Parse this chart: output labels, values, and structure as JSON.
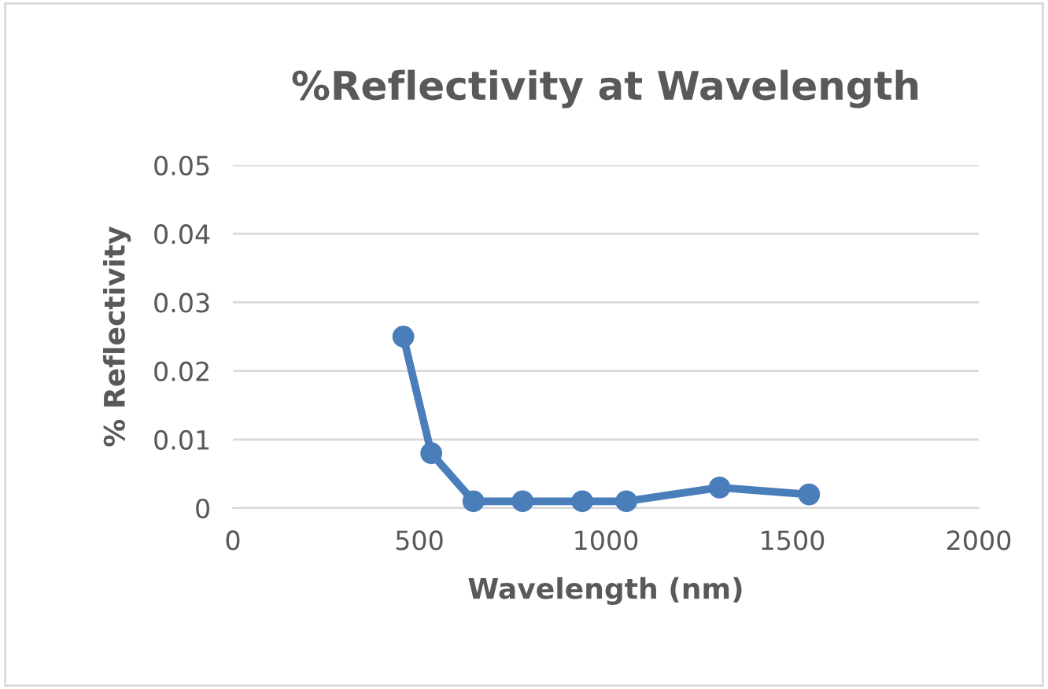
{
  "chart_data": {
    "type": "line",
    "title": "%Reflectivity at Wavelength",
    "xlabel": "Wavelength (nm)",
    "ylabel": "% Reflectivity",
    "x": [
      457,
      532,
      645,
      777,
      937,
      1055,
      1305,
      1545
    ],
    "series": [
      {
        "color": "#4a7ebb",
        "values": [
          0.025,
          0.008,
          0.001,
          0.001,
          0.001,
          0.001,
          0.003,
          0.002
        ]
      }
    ],
    "xlim": [
      0,
      2000
    ],
    "xticks": [
      0,
      500,
      1000,
      1500,
      2000
    ],
    "ylim": [
      0,
      0.05
    ],
    "yticks": [
      {
        "value": 0,
        "label": "0"
      },
      0.01,
      0.02,
      0.03,
      0.04,
      0.05
    ],
    "grid": "y",
    "marker": "circle",
    "line_style": "solid",
    "legend": false
  }
}
